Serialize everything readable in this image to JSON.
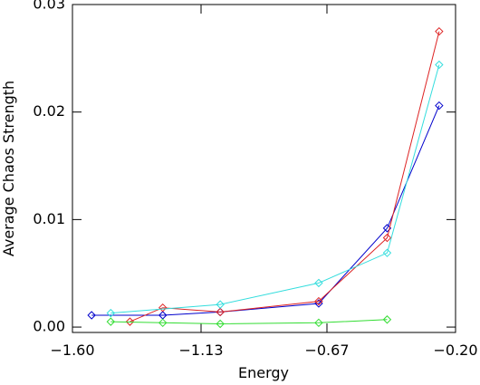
{
  "chart_data": {
    "type": "line",
    "title": "",
    "xlabel": "Energy",
    "ylabel": "Average Chaos Strength",
    "xlim": [
      -1.6,
      -0.2
    ],
    "ylim": [
      -0.0005,
      0.03
    ],
    "x_ticks": [
      -1.6,
      -1.13,
      -0.67,
      -0.2
    ],
    "x_tick_labels": [
      "−1.60",
      "−1.13",
      "−0.67",
      "−0.20"
    ],
    "y_ticks": [
      0.0,
      0.01,
      0.02,
      0.03
    ],
    "y_tick_labels": [
      "0.00",
      "0.01",
      "0.02",
      "0.03"
    ],
    "grid": false,
    "legend": "none",
    "marker": "diamond",
    "series": [
      {
        "color": "#0000cc",
        "x": [
          -1.53,
          -1.27,
          -1.06,
          -0.7,
          -0.45,
          -0.26
        ],
        "y": [
          0.0011,
          0.0011,
          0.0014,
          0.0022,
          0.0092,
          0.0206
        ]
      },
      {
        "color": "#dd2222",
        "x": [
          -1.39,
          -1.27,
          -1.06,
          -0.7,
          -0.45,
          -0.26
        ],
        "y": [
          0.0005,
          0.0018,
          0.0014,
          0.0024,
          0.0083,
          0.0275
        ]
      },
      {
        "color": "#33dddd",
        "x": [
          -1.46,
          -1.06,
          -0.7,
          -0.45,
          -0.26
        ],
        "y": [
          0.0013,
          0.0021,
          0.0041,
          0.0069,
          0.0244
        ]
      },
      {
        "color": "#33dd33",
        "x": [
          -1.46,
          -1.27,
          -1.06,
          -0.7,
          -0.45
        ],
        "y": [
          0.0005,
          0.0004,
          0.0003,
          0.0004,
          0.0007
        ]
      }
    ]
  }
}
